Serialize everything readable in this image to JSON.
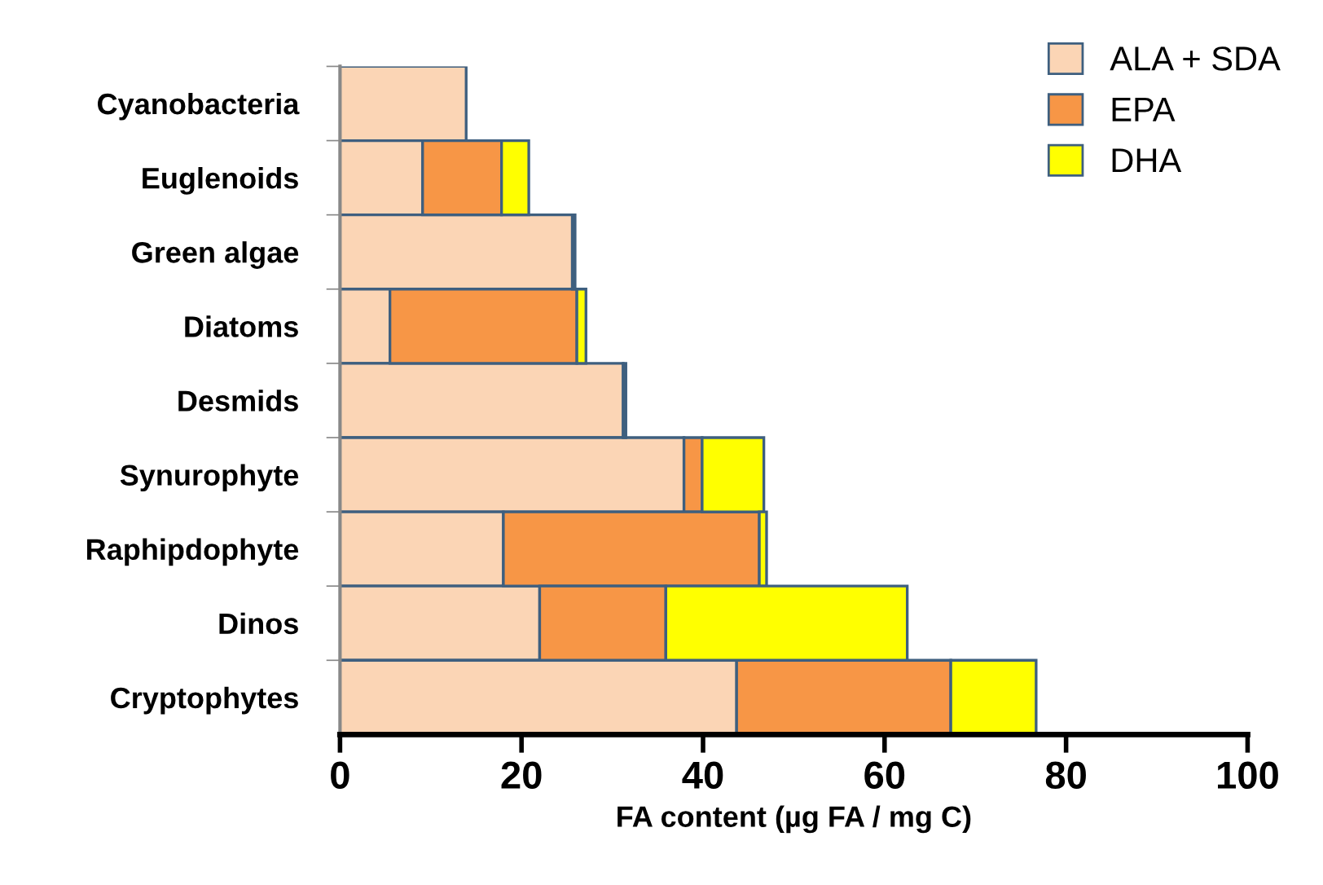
{
  "chart_data": {
    "type": "bar",
    "orientation": "horizontal",
    "stacked": true,
    "xlabel": "FA content (µg FA / mg C)",
    "categories": [
      "Cyanobacteria",
      "Euglenoids",
      "Green algae",
      "Diatoms",
      "Desmids",
      "Synurophyte",
      "Raphipdophyte",
      "Dinos",
      "Cryptophytes"
    ],
    "series": [
      {
        "name": "ALA + SDA",
        "color": "#fbd5b5",
        "values": [
          13.9,
          9.1,
          25.6,
          5.5,
          31.2,
          37.9,
          18.0,
          22.0,
          43.7
        ]
      },
      {
        "name": "EPA",
        "color": "#f79646",
        "values": [
          null,
          8.7,
          null,
          20.6,
          null,
          2.0,
          28.2,
          13.9,
          23.6
        ]
      },
      {
        "name": "DHA",
        "color": "#ffff00",
        "values": [
          null,
          3.0,
          0.3,
          1.0,
          0.3,
          6.8,
          0.8,
          26.6,
          9.4
        ]
      }
    ],
    "xlim": [
      0,
      100
    ],
    "xticks": [
      0,
      20,
      40,
      60,
      80,
      100
    ],
    "grid": false,
    "legend": "top right"
  }
}
